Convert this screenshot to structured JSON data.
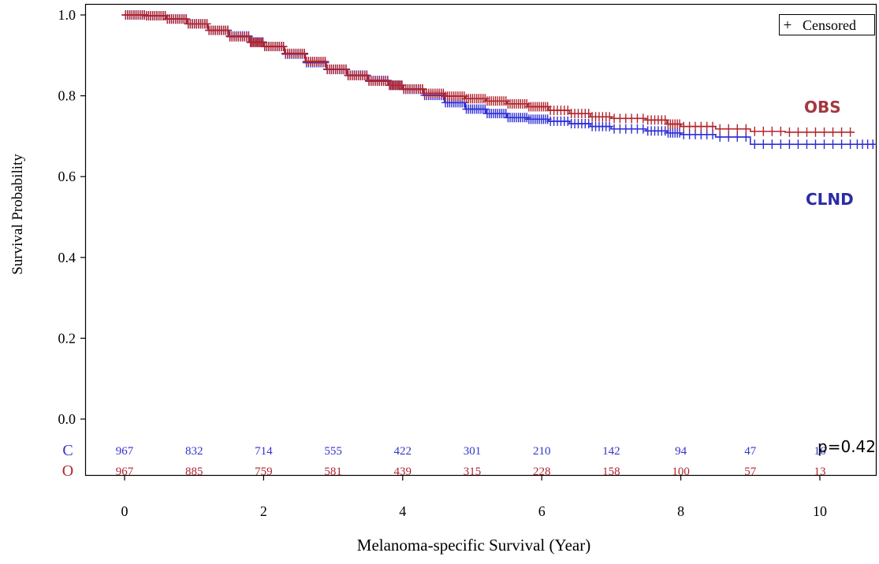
{
  "chart_data": {
    "type": "line",
    "xlabel": "Melanoma-specific Survival (Year)",
    "ylabel": "Survival Probability",
    "xlim": [
      0,
      10.8
    ],
    "ylim": [
      0,
      1.0
    ],
    "x_ticks": [
      "0",
      "2",
      "4",
      "6",
      "8",
      "10"
    ],
    "y_ticks": [
      "0.0",
      "0.2",
      "0.4",
      "0.6",
      "0.8",
      "1.0"
    ],
    "legend": {
      "label": "Censored",
      "symbol": "+",
      "placement": "top-right"
    },
    "annotation": "p=0.42",
    "series": [
      {
        "name": "OBS",
        "color": "#b0252d",
        "label_color": "#a5373f",
        "x": [
          0,
          0.3,
          0.6,
          0.9,
          1.2,
          1.5,
          1.8,
          2.0,
          2.3,
          2.6,
          2.9,
          3.2,
          3.5,
          3.8,
          4.0,
          4.3,
          4.6,
          4.9,
          5.2,
          5.5,
          5.8,
          6.1,
          6.4,
          6.7,
          7.0,
          7.5,
          7.8,
          8.0,
          8.5,
          9.0,
          9.5,
          10.0,
          10.5
        ],
        "y": [
          1.0,
          0.998,
          0.99,
          0.978,
          0.962,
          0.946,
          0.932,
          0.922,
          0.905,
          0.885,
          0.866,
          0.85,
          0.836,
          0.826,
          0.817,
          0.806,
          0.799,
          0.793,
          0.787,
          0.78,
          0.773,
          0.764,
          0.756,
          0.748,
          0.744,
          0.74,
          0.73,
          0.724,
          0.718,
          0.712,
          0.71,
          0.71,
          0.71
        ]
      },
      {
        "name": "CLND",
        "color": "#2f2fd6",
        "label_color": "#2b2ba6",
        "x": [
          0,
          0.3,
          0.6,
          0.9,
          1.2,
          1.5,
          1.8,
          2.0,
          2.3,
          2.6,
          2.9,
          3.2,
          3.5,
          3.8,
          4.0,
          4.3,
          4.6,
          4.9,
          5.2,
          5.5,
          5.8,
          6.1,
          6.4,
          6.7,
          7.0,
          7.5,
          7.8,
          8.0,
          8.5,
          9.0,
          9.5,
          10.0,
          10.5,
          10.8
        ],
        "y": [
          1.0,
          0.998,
          0.99,
          0.978,
          0.962,
          0.948,
          0.933,
          0.922,
          0.903,
          0.882,
          0.865,
          0.851,
          0.838,
          0.826,
          0.816,
          0.801,
          0.783,
          0.767,
          0.756,
          0.746,
          0.742,
          0.737,
          0.731,
          0.724,
          0.718,
          0.713,
          0.708,
          0.704,
          0.698,
          0.68,
          0.68,
          0.68,
          0.68,
          0.68
        ]
      }
    ]
  },
  "risk_table": {
    "time_points": [
      0,
      1,
      2,
      3,
      4,
      5,
      6,
      7,
      8,
      9,
      10
    ],
    "rows": [
      {
        "label": "C",
        "color": "#3333cc",
        "values": [
          "967",
          "832",
          "714",
          "555",
          "422",
          "301",
          "210",
          "142",
          "94",
          "47",
          "16"
        ]
      },
      {
        "label": "O",
        "color": "#b0252d",
        "values": [
          "967",
          "885",
          "759",
          "581",
          "439",
          "315",
          "228",
          "158",
          "100",
          "57",
          "13"
        ]
      }
    ]
  }
}
